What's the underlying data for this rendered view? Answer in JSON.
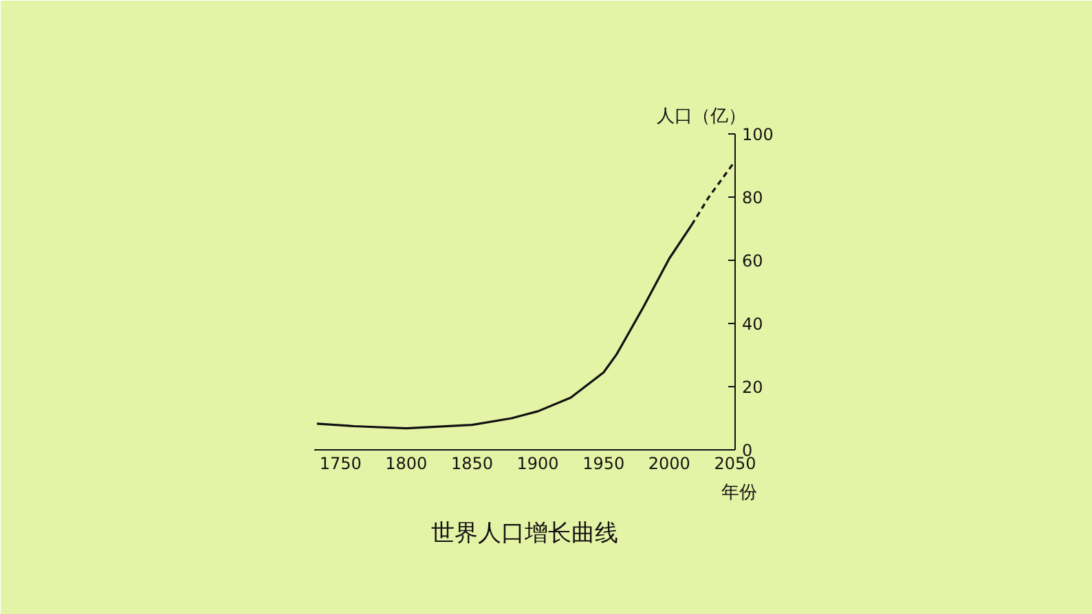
{
  "chart_data": {
    "type": "line",
    "title": "世界人口增长曲线",
    "xlabel": "年份",
    "ylabel": "人口（亿）",
    "xlim": [
      1730,
      2050
    ],
    "xticks": [
      1750,
      1800,
      1850,
      1900,
      1950,
      2000,
      2050
    ],
    "ylim": [
      0,
      100
    ],
    "yticks": [
      0,
      20,
      40,
      60,
      80,
      100
    ],
    "grid": false,
    "marker": "none",
    "series": [
      {
        "color": "#111111",
        "line_style": "solid",
        "x": [
          1732,
          1760,
          1800,
          1850,
          1880,
          1900,
          1925,
          1950,
          1960,
          1980,
          2000,
          2017
        ],
        "values": [
          8.3,
          7.5,
          6.8,
          7.9,
          10,
          12.2,
          16.5,
          24.5,
          30.3,
          45,
          60.6,
          71.2
        ]
      },
      {
        "color": "#111111",
        "line_style": "dashed",
        "x": [
          2017,
          2030,
          2048
        ],
        "values": [
          71.2,
          80,
          90.3
        ]
      }
    ]
  }
}
